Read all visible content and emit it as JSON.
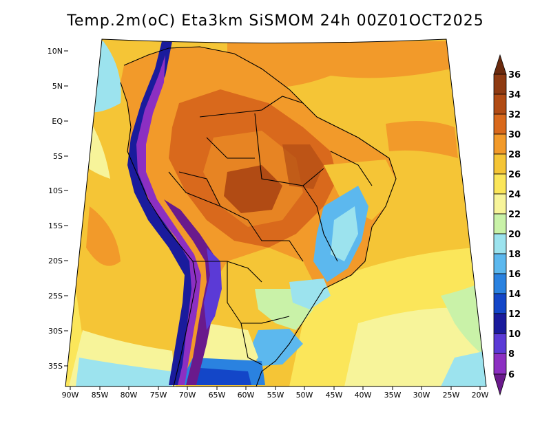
{
  "title": "Temp.2m(oC) Eta3km SiSMOM 24h 00Z01OCT2025",
  "map": {
    "variable": "2 m air temperature",
    "units": "oC",
    "lat_labels": [
      "10N",
      "5N",
      "EQ",
      "5S",
      "10S",
      "15S",
      "20S",
      "25S",
      "30S",
      "35S"
    ],
    "lon_labels": [
      "90W",
      "85W",
      "80W",
      "75W",
      "70W",
      "65W",
      "60W",
      "55W",
      "50W",
      "45W",
      "40W",
      "35W",
      "30W",
      "25W",
      "20W"
    ]
  },
  "colorbar": {
    "labels": [
      "36",
      "34",
      "32",
      "30",
      "28",
      "26",
      "24",
      "22",
      "20",
      "18",
      "16",
      "14",
      "12",
      "10",
      "8",
      "6"
    ],
    "colors": [
      "#6b2a0e",
      "#8e3a12",
      "#b14b14",
      "#d9691c",
      "#f29a2a",
      "#f5c536",
      "#fbe65a",
      "#f7f49a",
      "#c9f2a8",
      "#9ce3ee",
      "#5cb8ee",
      "#2a82e0",
      "#1346c8",
      "#1a1b9c",
      "#5b3ad6",
      "#8c2fc2",
      "#6a1a8c"
    ]
  }
}
